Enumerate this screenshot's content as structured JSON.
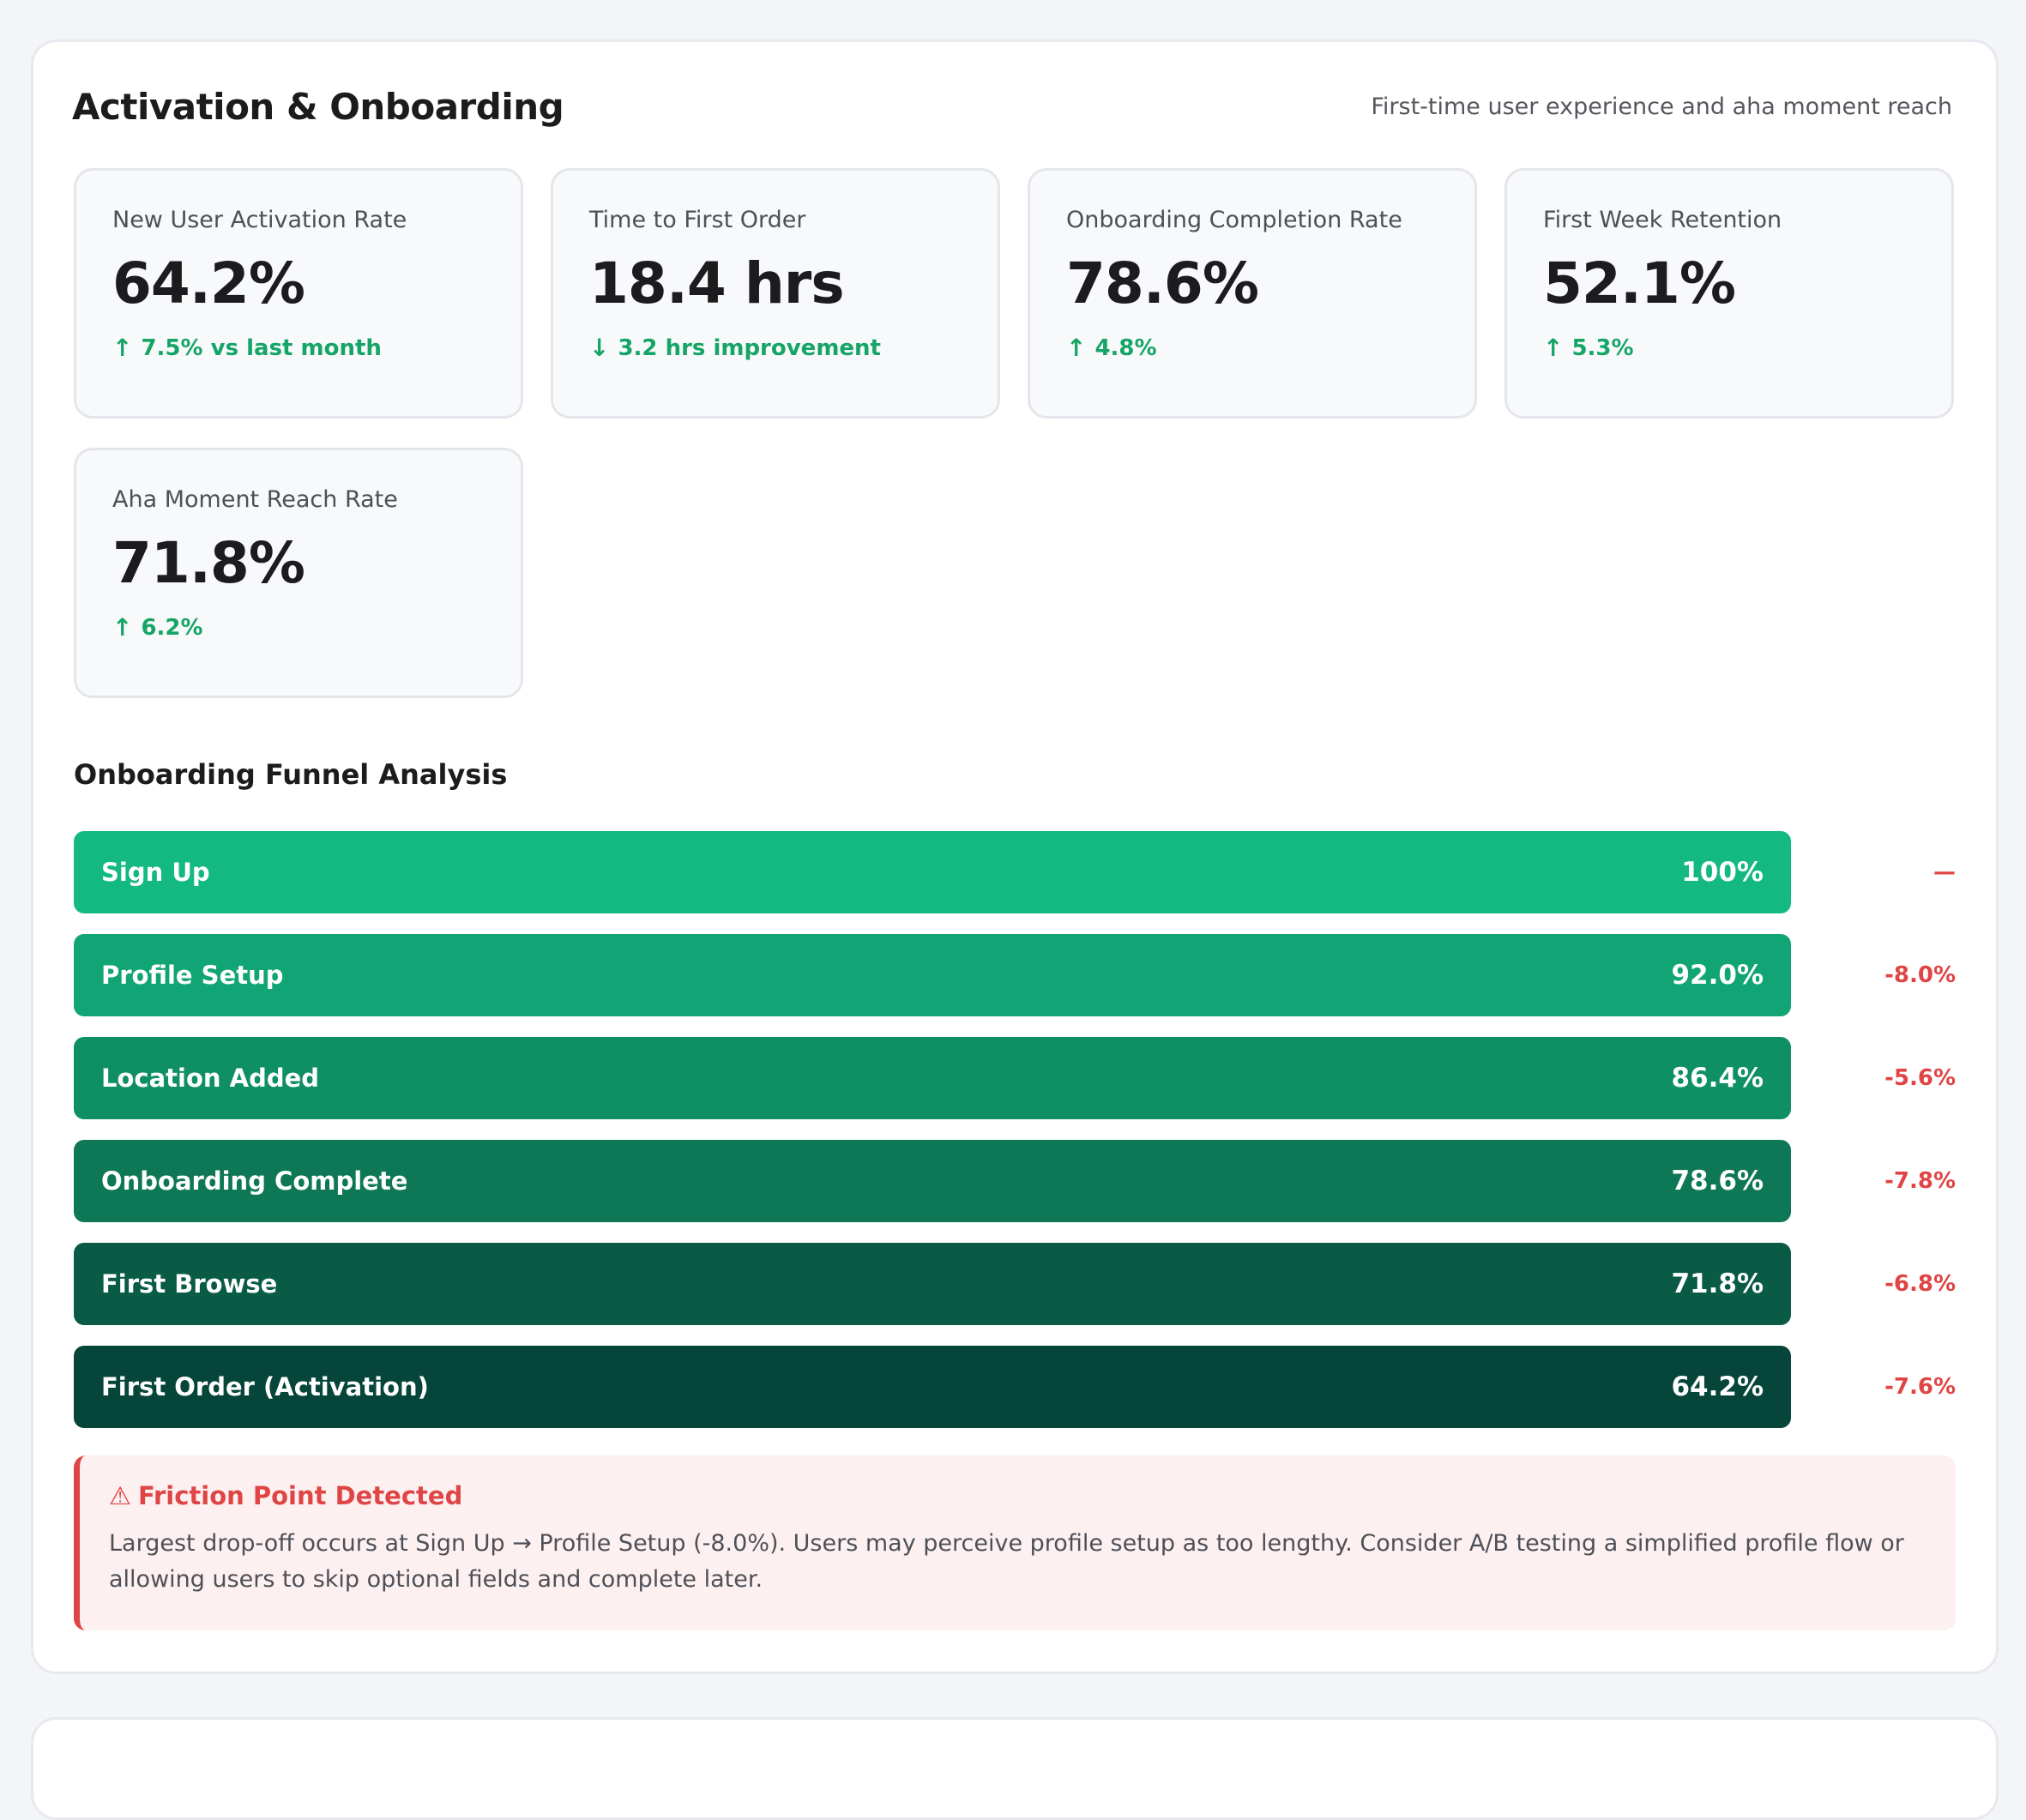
{
  "section": {
    "title": "Activation & Onboarding",
    "subtitle": "First-time user experience and aha moment reach"
  },
  "kpis": [
    {
      "label": "New User Activation Rate",
      "value": "64.2%",
      "arrow": "↑",
      "delta": "7.5% vs last month",
      "delta_color": "#16a567"
    },
    {
      "label": "Time to First Order",
      "value": "18.4 hrs",
      "arrow": "↓",
      "delta": "3.2 hrs improvement",
      "delta_color": "#16a567"
    },
    {
      "label": "Onboarding Completion Rate",
      "value": "78.6%",
      "arrow": "↑",
      "delta": "4.8%",
      "delta_color": "#16a567"
    },
    {
      "label": "First Week Retention",
      "value": "52.1%",
      "arrow": "↑",
      "delta": "5.3%",
      "delta_color": "#16a567"
    },
    {
      "label": "Aha Moment Reach Rate",
      "value": "71.8%",
      "arrow": "↑",
      "delta": "6.2%",
      "delta_color": "#16a567"
    }
  ],
  "funnel": {
    "title": "Onboarding Funnel Analysis",
    "steps": [
      {
        "label": "Sign Up",
        "pct": "100%",
        "drop": "—",
        "color": "#14b981"
      },
      {
        "label": "Profile Setup",
        "pct": "92.0%",
        "drop": "-8.0%",
        "color": "#11a474"
      },
      {
        "label": "Location Added",
        "pct": "86.4%",
        "drop": "-5.6%",
        "color": "#0f8f64"
      },
      {
        "label": "Onboarding Complete",
        "pct": "78.6%",
        "drop": "-7.8%",
        "color": "#0e7856"
      },
      {
        "label": "First Browse",
        "pct": "71.8%",
        "drop": "-6.8%",
        "color": "#095b45"
      },
      {
        "label": "First Order (Activation)",
        "pct": "64.2%",
        "drop": "-7.6%",
        "color": "#06463a"
      }
    ]
  },
  "alert": {
    "icon": "warning-icon",
    "title": "Friction Point Detected",
    "body": "Largest drop-off occurs at Sign Up → Profile Setup (-8.0%). Users may perceive profile setup as too lengthy. Consider A/B testing a simplified profile flow or allowing users to skip optional fields and complete later.",
    "color": "#e04545"
  }
}
